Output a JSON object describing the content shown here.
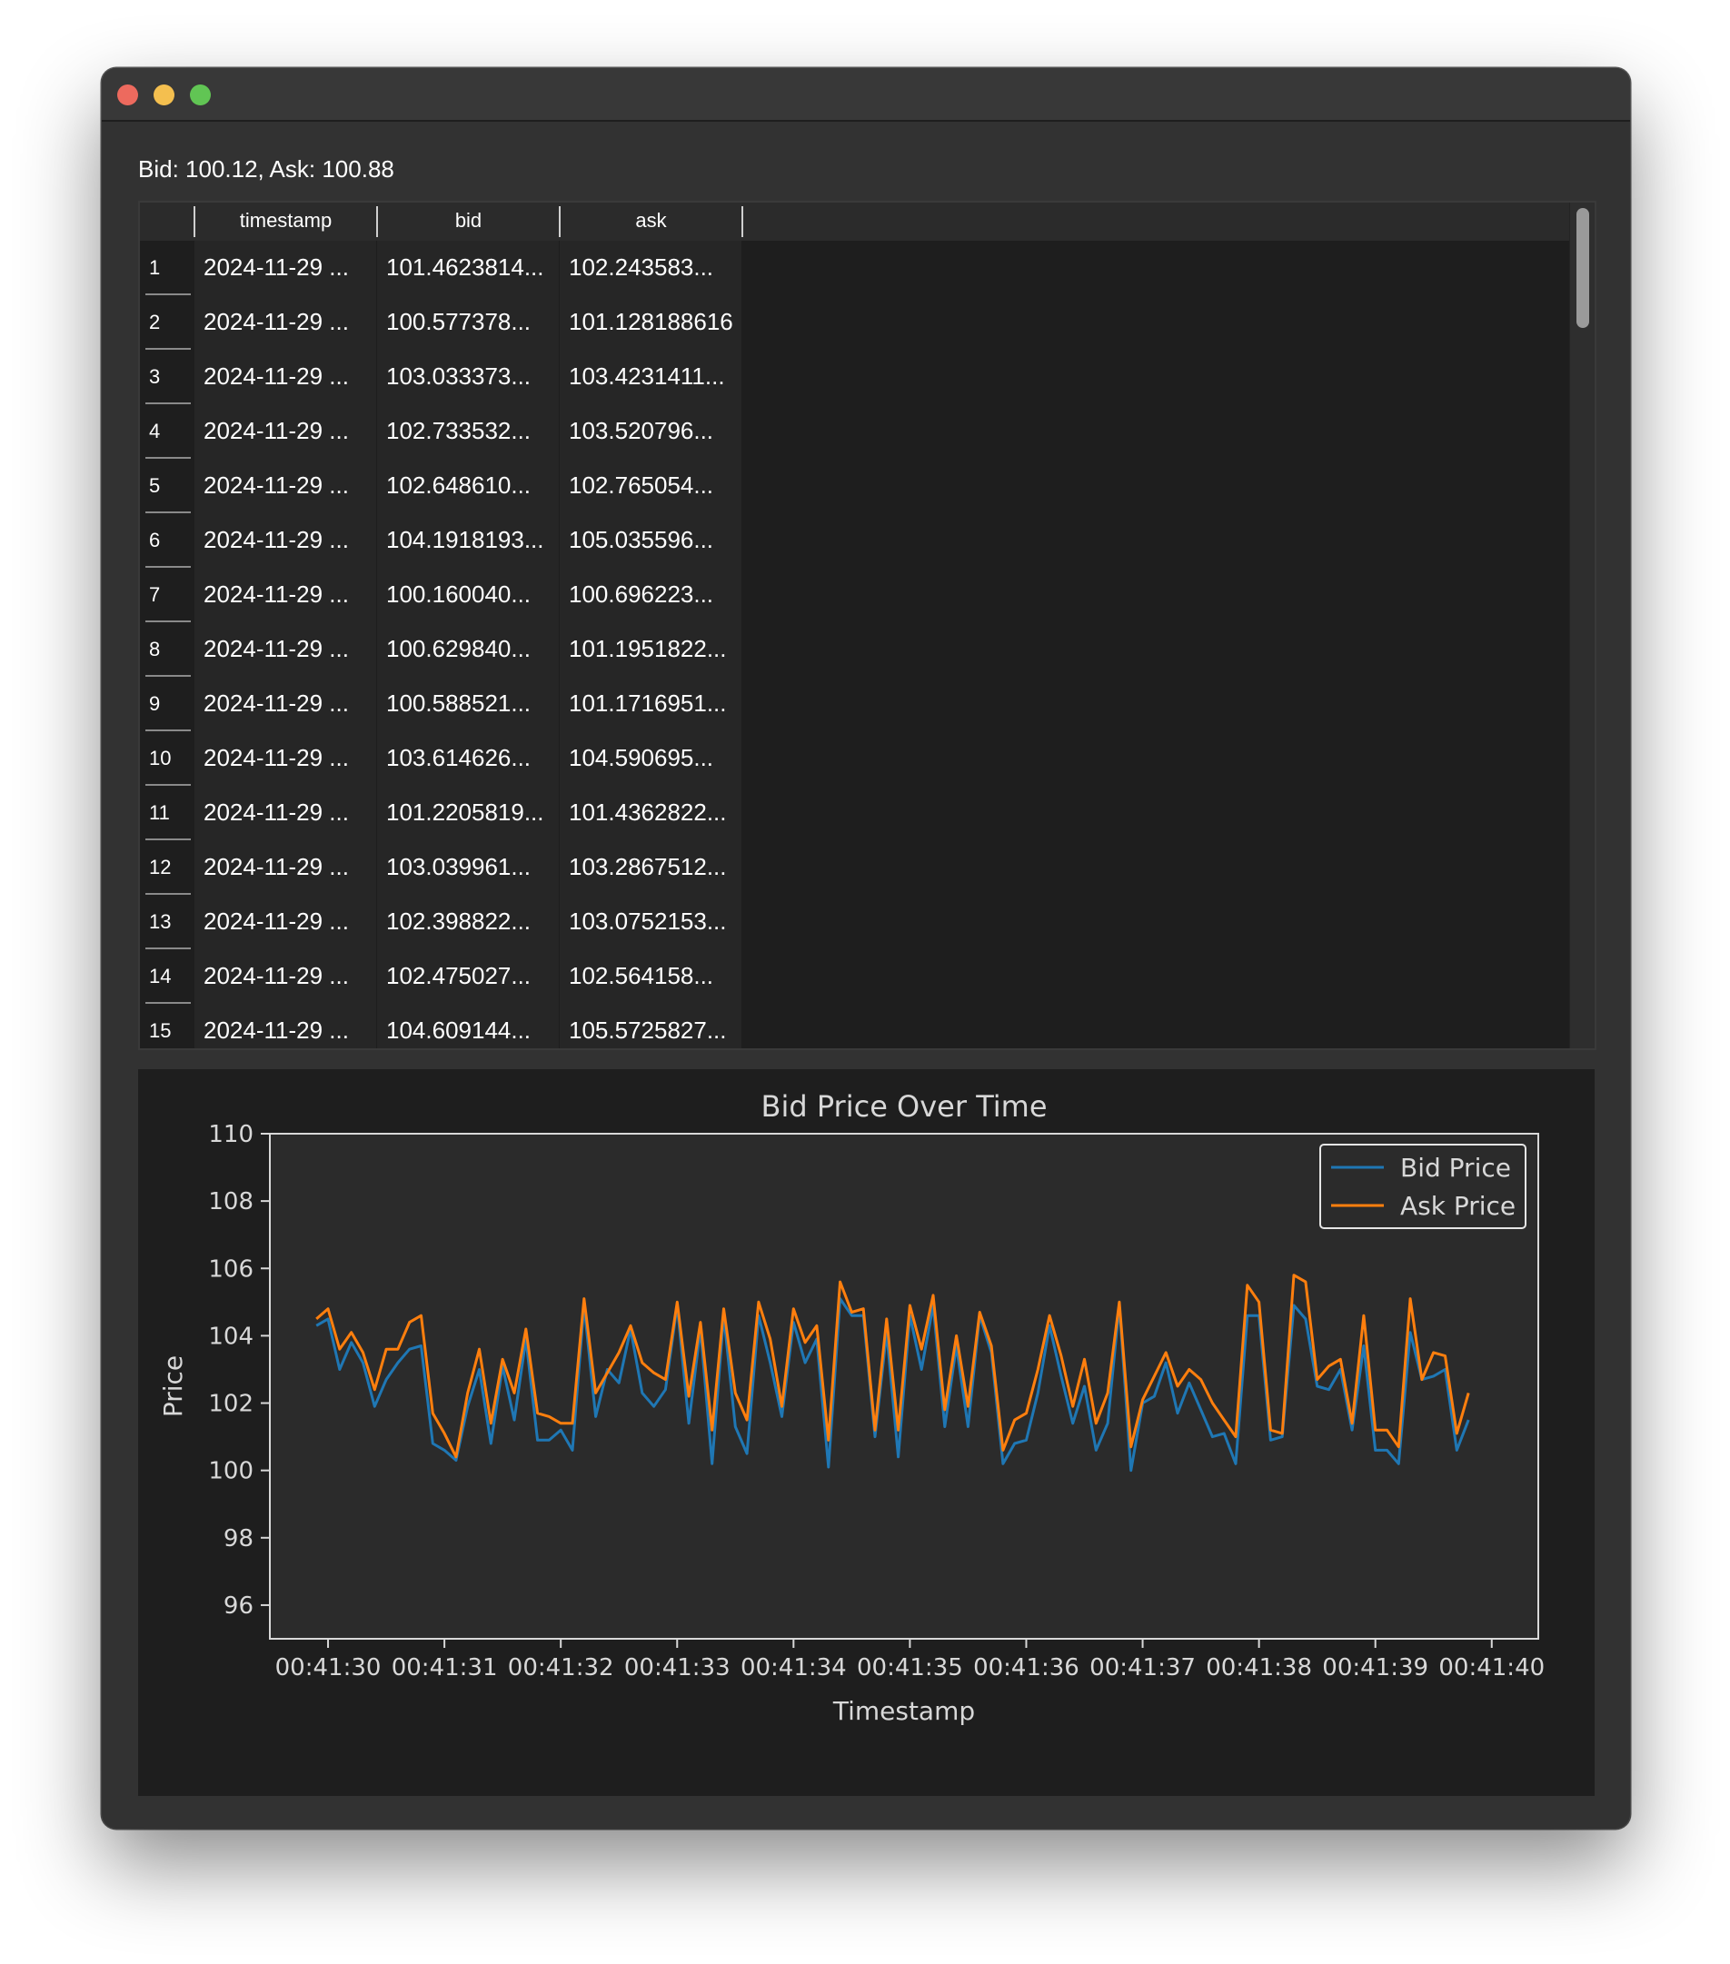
{
  "window": {
    "controls": [
      "close",
      "minimize",
      "zoom"
    ]
  },
  "status": {
    "text": "Bid: 100.12, Ask: 100.88"
  },
  "table": {
    "columns": [
      "timestamp",
      "bid",
      "ask"
    ],
    "rows": [
      {
        "num": "1",
        "timestamp": "2024-11-29 ...",
        "bid": "101.4623814...",
        "ask": "102.243583..."
      },
      {
        "num": "2",
        "timestamp": "2024-11-29 ...",
        "bid": "100.577378...",
        "ask": "101.128188616"
      },
      {
        "num": "3",
        "timestamp": "2024-11-29 ...",
        "bid": "103.033373...",
        "ask": "103.4231411..."
      },
      {
        "num": "4",
        "timestamp": "2024-11-29 ...",
        "bid": "102.733532...",
        "ask": "103.520796..."
      },
      {
        "num": "5",
        "timestamp": "2024-11-29 ...",
        "bid": "102.648610...",
        "ask": "102.765054..."
      },
      {
        "num": "6",
        "timestamp": "2024-11-29 ...",
        "bid": "104.1918193...",
        "ask": "105.035596..."
      },
      {
        "num": "7",
        "timestamp": "2024-11-29 ...",
        "bid": "100.160040...",
        "ask": "100.696223..."
      },
      {
        "num": "8",
        "timestamp": "2024-11-29 ...",
        "bid": "100.629840...",
        "ask": "101.1951822..."
      },
      {
        "num": "9",
        "timestamp": "2024-11-29 ...",
        "bid": "100.588521...",
        "ask": "101.1716951..."
      },
      {
        "num": "10",
        "timestamp": "2024-11-29 ...",
        "bid": "103.614626...",
        "ask": "104.590695..."
      },
      {
        "num": "11",
        "timestamp": "2024-11-29 ...",
        "bid": "101.2205819...",
        "ask": "101.4362822..."
      },
      {
        "num": "12",
        "timestamp": "2024-11-29 ...",
        "bid": "103.039961...",
        "ask": "103.2867512..."
      },
      {
        "num": "13",
        "timestamp": "2024-11-29 ...",
        "bid": "102.398822...",
        "ask": "103.0752153..."
      },
      {
        "num": "14",
        "timestamp": "2024-11-29 ...",
        "bid": "102.475027...",
        "ask": "102.564158..."
      },
      {
        "num": "15",
        "timestamp": "2024-11-29 ...",
        "bid": "104.609144...",
        "ask": "105.5725827..."
      }
    ]
  },
  "chart_data": {
    "type": "line",
    "title": "Bid Price Over Time",
    "xlabel": "Timestamp",
    "ylabel": "Price",
    "x_ticks": [
      "00:41:30",
      "00:41:31",
      "00:41:32",
      "00:41:33",
      "00:41:34",
      "00:41:35",
      "00:41:36",
      "00:41:37",
      "00:41:38",
      "00:41:39",
      "00:41:40"
    ],
    "x_range": [
      29.5,
      40.4
    ],
    "ylim": [
      95,
      110
    ],
    "y_ticks": [
      96,
      98,
      100,
      102,
      104,
      106,
      108,
      110
    ],
    "legend": "top-right",
    "grid": false,
    "colors": {
      "background": "#2b2b2b",
      "panel": "#1e1e1e",
      "axes": "#d8d8d8",
      "text": "#d8d8d8",
      "bid": "#1f77b4",
      "ask": "#ff7f0e"
    },
    "series": [
      {
        "name": "Bid Price",
        "color": "#1f77b4",
        "x": [
          29.9,
          30.0,
          30.1,
          30.2,
          30.3,
          30.4,
          30.5,
          30.6,
          30.7,
          30.8,
          30.9,
          31.0,
          31.1,
          31.2,
          31.3,
          31.4,
          31.5,
          31.6,
          31.7,
          31.8,
          31.9,
          32.0,
          32.1,
          32.2,
          32.3,
          32.4,
          32.5,
          32.6,
          32.7,
          32.8,
          32.9,
          33.0,
          33.1,
          33.2,
          33.3,
          33.4,
          33.5,
          33.6,
          33.7,
          33.8,
          33.9,
          34.0,
          34.1,
          34.2,
          34.3,
          34.4,
          34.5,
          34.6,
          34.7,
          34.8,
          34.9,
          35.0,
          35.1,
          35.2,
          35.3,
          35.4,
          35.5,
          35.6,
          35.7,
          35.8,
          35.9,
          36.0,
          36.1,
          36.2,
          36.3,
          36.4,
          36.5,
          36.6,
          36.7,
          36.8,
          36.9,
          37.0,
          37.1,
          37.2,
          37.3,
          37.4,
          37.5,
          37.6,
          37.7,
          37.8,
          37.9,
          38.0,
          38.1,
          38.2,
          38.3,
          38.4,
          38.5,
          38.6,
          38.7,
          38.8,
          38.9,
          39.0,
          39.1,
          39.2,
          39.3,
          39.4,
          39.5,
          39.6,
          39.7,
          39.8
        ],
        "values": [
          104.3,
          104.5,
          103.0,
          103.8,
          103.2,
          101.9,
          102.7,
          103.2,
          103.6,
          103.7,
          100.8,
          100.6,
          100.3,
          101.9,
          103.0,
          100.8,
          103.1,
          101.5,
          103.9,
          100.9,
          100.9,
          101.2,
          100.6,
          104.9,
          101.6,
          103.0,
          102.6,
          104.2,
          102.3,
          101.9,
          102.4,
          104.9,
          101.4,
          104.2,
          100.2,
          104.6,
          101.3,
          100.5,
          104.6,
          103.2,
          101.6,
          104.4,
          103.2,
          103.9,
          100.1,
          105.1,
          104.6,
          104.6,
          101.0,
          104.1,
          100.4,
          104.6,
          103.0,
          104.9,
          101.3,
          103.7,
          101.3,
          104.6,
          103.5,
          100.2,
          100.8,
          100.9,
          102.3,
          104.3,
          102.8,
          101.4,
          102.5,
          100.6,
          101.4,
          104.9,
          100.0,
          102.0,
          102.2,
          103.2,
          101.7,
          102.6,
          101.8,
          101.0,
          101.1,
          100.2,
          104.6,
          104.6,
          100.9,
          101.0,
          104.9,
          104.5,
          102.5,
          102.4,
          103.0,
          101.2,
          103.7,
          100.6,
          100.6,
          100.2,
          104.1,
          102.7,
          102.8,
          103.0,
          100.6,
          101.5
        ]
      },
      {
        "name": "Ask Price",
        "color": "#ff7f0e",
        "x": [
          29.9,
          30.0,
          30.1,
          30.2,
          30.3,
          30.4,
          30.5,
          30.6,
          30.7,
          30.8,
          30.9,
          31.0,
          31.1,
          31.2,
          31.3,
          31.4,
          31.5,
          31.6,
          31.7,
          31.8,
          31.9,
          32.0,
          32.1,
          32.2,
          32.3,
          32.4,
          32.5,
          32.6,
          32.7,
          32.8,
          32.9,
          33.0,
          33.1,
          33.2,
          33.3,
          33.4,
          33.5,
          33.6,
          33.7,
          33.8,
          33.9,
          34.0,
          34.1,
          34.2,
          34.3,
          34.4,
          34.5,
          34.6,
          34.7,
          34.8,
          34.9,
          35.0,
          35.1,
          35.2,
          35.3,
          35.4,
          35.5,
          35.6,
          35.7,
          35.8,
          35.9,
          36.0,
          36.1,
          36.2,
          36.3,
          36.4,
          36.5,
          36.6,
          36.7,
          36.8,
          36.9,
          37.0,
          37.1,
          37.2,
          37.3,
          37.4,
          37.5,
          37.6,
          37.7,
          37.8,
          37.9,
          38.0,
          38.1,
          38.2,
          38.3,
          38.4,
          38.5,
          38.6,
          38.7,
          38.8,
          38.9,
          39.0,
          39.1,
          39.2,
          39.3,
          39.4,
          39.5,
          39.6,
          39.7,
          39.8
        ],
        "values": [
          104.5,
          104.8,
          103.6,
          104.1,
          103.5,
          102.4,
          103.6,
          103.6,
          104.4,
          104.6,
          101.7,
          101.1,
          100.4,
          102.3,
          103.6,
          101.4,
          103.3,
          102.3,
          104.2,
          101.7,
          101.6,
          101.4,
          101.4,
          105.1,
          102.3,
          102.9,
          103.5,
          104.3,
          103.2,
          102.9,
          102.7,
          105.0,
          102.2,
          104.4,
          101.2,
          104.8,
          102.3,
          101.5,
          105.0,
          103.9,
          101.9,
          104.8,
          103.8,
          104.3,
          100.9,
          105.6,
          104.7,
          104.8,
          101.2,
          104.5,
          101.2,
          104.9,
          103.6,
          105.2,
          101.8,
          104.0,
          101.9,
          104.7,
          103.7,
          100.6,
          101.5,
          101.7,
          103.0,
          104.6,
          103.4,
          101.9,
          103.3,
          101.4,
          102.3,
          105.0,
          100.7,
          102.1,
          102.8,
          103.5,
          102.5,
          103.0,
          102.7,
          102.0,
          101.5,
          101.0,
          105.5,
          105.0,
          101.2,
          101.1,
          105.8,
          105.6,
          102.7,
          103.1,
          103.3,
          101.4,
          104.6,
          101.2,
          101.2,
          100.7,
          105.1,
          102.7,
          103.5,
          103.4,
          101.1,
          102.3
        ]
      }
    ]
  }
}
